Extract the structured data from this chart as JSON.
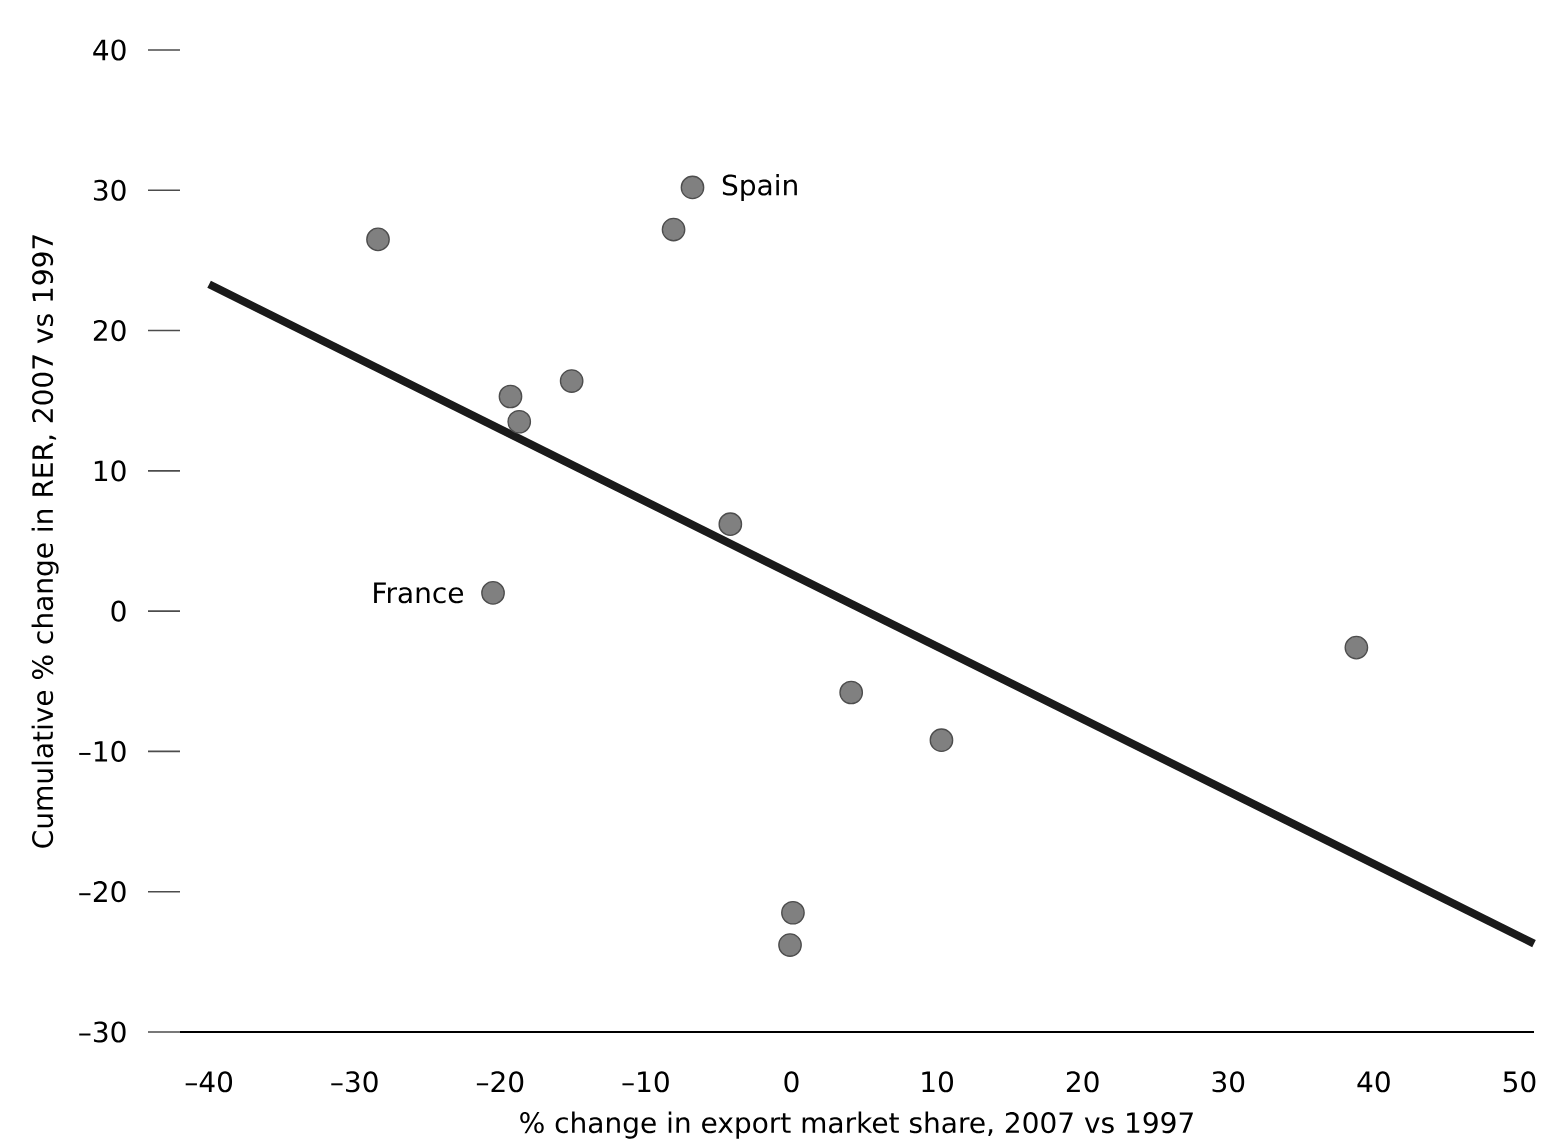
{
  "chart_data": {
    "type": "scatter",
    "xlabel": "% change in export market share, 2007 vs 1997",
    "ylabel": "Cumulative % change in RER, 2007 vs 1997",
    "xlim": [
      -42,
      51
    ],
    "ylim": [
      -30,
      40
    ],
    "xticks": [
      {
        "value": -40,
        "label": "–40"
      },
      {
        "value": -30,
        "label": "–30"
      },
      {
        "value": -20,
        "label": "–20"
      },
      {
        "value": -10,
        "label": "–10"
      },
      0,
      10,
      20,
      30,
      40,
      50
    ],
    "yticks": [
      {
        "value": -30,
        "label": "–30"
      },
      {
        "value": -20,
        "label": "–20"
      },
      {
        "value": -10,
        "label": "–10"
      },
      0,
      10,
      20,
      30,
      40
    ],
    "series": [
      {
        "type": "scatter",
        "marker": "circle",
        "color": "#808080",
        "x": [
          -28.4,
          -6.8,
          -8.1,
          -19.3,
          -15.1,
          -18.7,
          -4.2,
          -20.5,
          4.1,
          10.3,
          38.8,
          0.1,
          -0.1
        ],
        "values": [
          26.5,
          30.2,
          27.2,
          15.3,
          16.4,
          13.5,
          6.2,
          1.3,
          -5.8,
          -9.2,
          -2.6,
          -21.5,
          -23.8
        ]
      },
      {
        "type": "line",
        "marker": "none",
        "color": "#1a1a1a",
        "x": [
          -40,
          51
        ],
        "values": [
          23.3,
          -23.7
        ]
      }
    ],
    "annotations": [
      {
        "text": "Spain",
        "x": -6.8,
        "y": 30.2
      },
      {
        "text": "France",
        "x": -20.5,
        "y": 1.3
      }
    ]
  }
}
